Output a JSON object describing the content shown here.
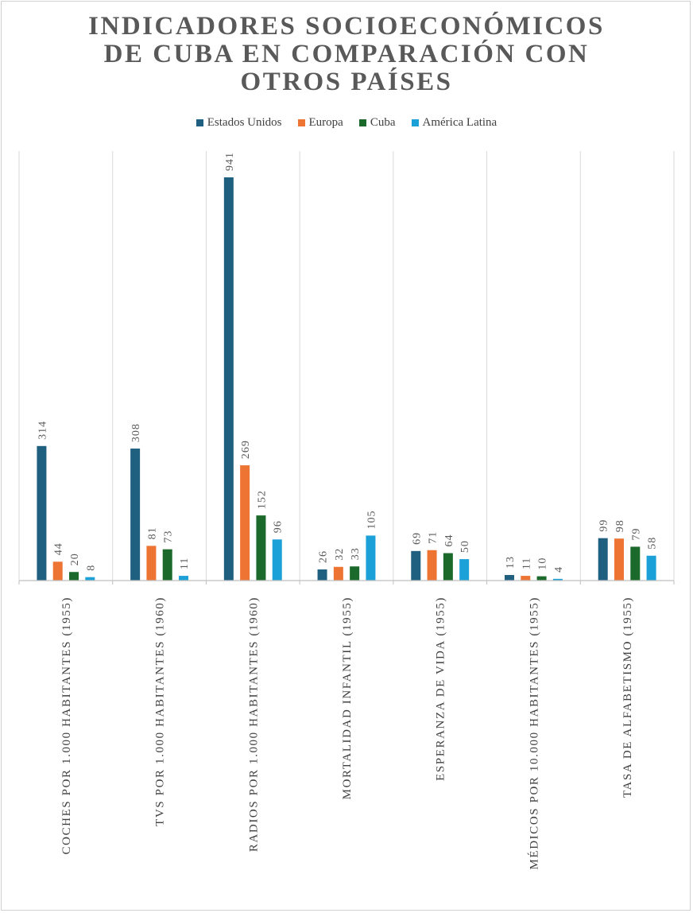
{
  "chart_data": {
    "type": "bar",
    "title_lines": [
      "INDICADORES SOCIOECONÓMICOS",
      "DE CUBA EN COMPARACIÓN CON",
      "OTROS PAÍSES"
    ],
    "categories": [
      "COCHES POR 1.000 HABITANTES (1955)",
      "TVS POR 1.000 HABITANTES (1960)",
      "RADIOS POR 1.000 HABITANTES (1960)",
      "MORTALIDAD INFANTIL (1955)",
      "ESPERANZA DE VIDA (1955)",
      "MÉDICOS POR 10.000 HABITANTES (1955)",
      "TASA DE ALFABETISMO (1955)"
    ],
    "series": [
      {
        "name": "Estados Unidos",
        "color": "#1f5f80",
        "values": [
          314,
          308,
          941,
          26,
          69,
          13,
          99
        ]
      },
      {
        "name": "Europa",
        "color": "#ed7433",
        "values": [
          44,
          81,
          269,
          32,
          71,
          11,
          98
        ]
      },
      {
        "name": "Cuba",
        "color": "#1b6a2b",
        "values": [
          20,
          73,
          152,
          33,
          64,
          10,
          79
        ]
      },
      {
        "name": "América Latina",
        "color": "#1ba0d8",
        "values": [
          8,
          11,
          96,
          105,
          50,
          4,
          58
        ]
      }
    ],
    "ylim": [
      0,
      1000
    ],
    "legend_position": "top"
  }
}
